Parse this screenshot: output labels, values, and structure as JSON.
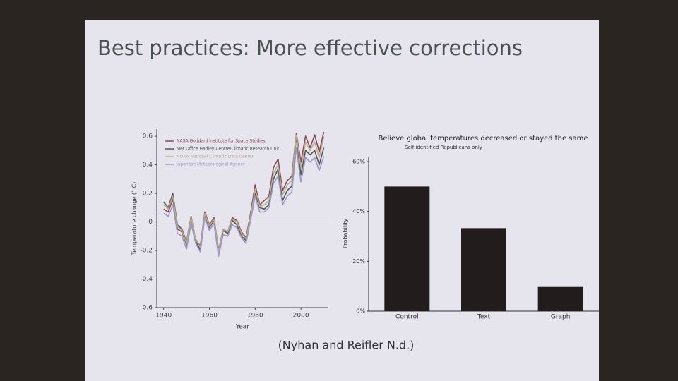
{
  "slide": {
    "title": "Best practices: More effective corrections",
    "citation": "(Nyhan and Reifler N.d.)"
  },
  "chart_data": [
    {
      "type": "line",
      "xlabel": "Year",
      "ylabel": "Temperature change (° C)",
      "x": [
        1940,
        1942,
        1944,
        1946,
        1948,
        1950,
        1952,
        1954,
        1956,
        1958,
        1960,
        1962,
        1964,
        1966,
        1968,
        1970,
        1972,
        1974,
        1976,
        1978,
        1980,
        1982,
        1984,
        1986,
        1988,
        1990,
        1992,
        1994,
        1996,
        1998,
        2000,
        2002,
        2004,
        2006,
        2008,
        2010
      ],
      "series": [
        {
          "name": "NASA Goddard Institute for Space Studies",
          "color": "#8a4658",
          "values": [
            0.09,
            0.07,
            0.16,
            -0.05,
            -0.07,
            -0.16,
            0.02,
            -0.12,
            -0.17,
            0.07,
            -0.02,
            0.03,
            -0.2,
            -0.05,
            -0.07,
            0.03,
            0.01,
            -0.07,
            -0.11,
            0.06,
            0.26,
            0.12,
            0.15,
            0.18,
            0.38,
            0.44,
            0.22,
            0.29,
            0.32,
            0.62,
            0.42,
            0.6,
            0.52,
            0.61,
            0.49,
            0.63
          ]
        },
        {
          "name": "Met Office Hadley Centre/Climatic Research Unit",
          "color": "#555555",
          "values": [
            0.14,
            0.1,
            0.2,
            -0.02,
            -0.05,
            -0.14,
            0.04,
            -0.13,
            -0.2,
            0.05,
            -0.04,
            0.01,
            -0.22,
            -0.06,
            -0.08,
            0.01,
            -0.02,
            -0.1,
            -0.13,
            0.03,
            0.2,
            0.1,
            0.09,
            0.12,
            0.3,
            0.37,
            0.15,
            0.22,
            0.25,
            0.6,
            0.33,
            0.5,
            0.47,
            0.5,
            0.4,
            0.52
          ]
        },
        {
          "name": "NOAA National Climatic Data Center",
          "color": "#b5ad8a",
          "values": [
            0.12,
            0.09,
            0.18,
            -0.03,
            -0.06,
            -0.15,
            0.03,
            -0.12,
            -0.18,
            0.06,
            -0.03,
            0.02,
            -0.21,
            -0.05,
            -0.07,
            0.02,
            0.0,
            -0.08,
            -0.12,
            0.04,
            0.23,
            0.11,
            0.12,
            0.15,
            0.34,
            0.4,
            0.19,
            0.26,
            0.29,
            0.61,
            0.38,
            0.56,
            0.5,
            0.56,
            0.45,
            0.6
          ]
        },
        {
          "name": "Japanese Meteorological Agency",
          "color": "#9b97c9",
          "values": [
            0.06,
            0.04,
            0.12,
            -0.08,
            -0.1,
            -0.19,
            -0.01,
            -0.15,
            -0.21,
            0.03,
            -0.06,
            -0.01,
            -0.24,
            -0.09,
            -0.1,
            -0.02,
            -0.04,
            -0.11,
            -0.15,
            0.01,
            0.18,
            0.07,
            0.07,
            0.1,
            0.27,
            0.32,
            0.12,
            0.18,
            0.21,
            0.52,
            0.28,
            0.45,
            0.42,
            0.45,
            0.36,
            0.46
          ]
        }
      ],
      "xlim": [
        1937,
        2012
      ],
      "ylim": [
        -0.6,
        0.65
      ],
      "xticks": [
        1940,
        1960,
        1980,
        2000
      ],
      "yticks": [
        -0.6,
        -0.4,
        -0.2,
        0,
        0.2,
        0.4,
        0.6
      ]
    },
    {
      "type": "bar",
      "title": "Believe global temperatures decreased or stayed the same",
      "subtitle": "Self-identified Republicans only",
      "ylabel": "Probability",
      "categories": [
        "Control",
        "Text",
        "Graph"
      ],
      "values": [
        50,
        33.3,
        9.7
      ],
      "color": "#231c1c",
      "ylim": [
        0,
        62
      ],
      "yticks": [
        {
          "value": 0,
          "label": "0%"
        },
        {
          "value": 20,
          "label": "20%"
        },
        {
          "value": 40,
          "label": "40%"
        },
        {
          "value": 60,
          "label": "60%"
        }
      ]
    }
  ]
}
